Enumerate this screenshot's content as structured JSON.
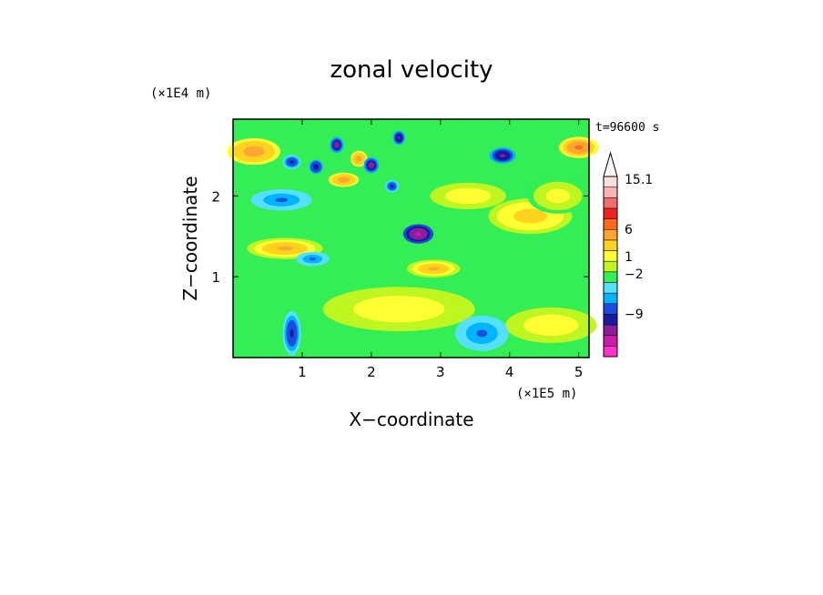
{
  "chart_data": {
    "type": "heatmap",
    "title": "zonal velocity",
    "xlabel": "X−coordinate",
    "ylabel": "Z−coordinate",
    "x_unit": "(×1E5 m)",
    "y_unit": "(×1E4 m)",
    "time_label": "t=96600 s",
    "xlim": [
      0,
      5.15
    ],
    "ylim": [
      0,
      2.95
    ],
    "x_ticks": [
      "1",
      "2",
      "3",
      "4",
      "5"
    ],
    "y_ticks": [
      "1",
      "2"
    ],
    "colorbar": {
      "labels": [
        "15.1",
        "6",
        "1",
        "−2",
        "−9"
      ],
      "levels": [
        {
          "value": -13,
          "color": "#ff33cc"
        },
        {
          "value": -10,
          "color": "#cc1aaa"
        },
        {
          "value": -7,
          "color": "#8a1f9c"
        },
        {
          "value": -4,
          "color": "#1a1aa0"
        },
        {
          "value": -2.5,
          "color": "#1e4be0"
        },
        {
          "value": -1.5,
          "color": "#00b4ff"
        },
        {
          "value": -0.5,
          "color": "#55e0ff"
        },
        {
          "value": 0,
          "color": "#33ee55"
        },
        {
          "value": 0.5,
          "color": "#bff520"
        },
        {
          "value": 1,
          "color": "#ffff33"
        },
        {
          "value": 2,
          "color": "#ffd21e"
        },
        {
          "value": 3.5,
          "color": "#ffa533"
        },
        {
          "value": 5,
          "color": "#ff6a1a"
        },
        {
          "value": 7.5,
          "color": "#ee2222"
        },
        {
          "value": 10,
          "color": "#f06e6e"
        },
        {
          "value": 12.5,
          "color": "#f8b4b4"
        },
        {
          "value": 15.1,
          "color": "#fce0dc"
        }
      ]
    },
    "field_features": [
      {
        "x": 1.5,
        "z": 2.63,
        "u": -7,
        "sx": 0.09,
        "sz": 0.09
      },
      {
        "x": 1.82,
        "z": 2.46,
        "u": 4,
        "sx": 0.11,
        "sz": 0.09
      },
      {
        "x": 2.0,
        "z": 2.38,
        "u": -7,
        "sx": 0.1,
        "sz": 0.09
      },
      {
        "x": 2.4,
        "z": 2.72,
        "u": -6,
        "sx": 0.08,
        "sz": 0.08
      },
      {
        "x": 0.85,
        "z": 2.42,
        "u": -4,
        "sx": 0.12,
        "sz": 0.08
      },
      {
        "x": 1.2,
        "z": 2.36,
        "u": -5,
        "sx": 0.09,
        "sz": 0.08
      },
      {
        "x": 1.6,
        "z": 2.2,
        "u": 4,
        "sx": 0.2,
        "sz": 0.08
      },
      {
        "x": 2.3,
        "z": 2.12,
        "u": -4,
        "sx": 0.09,
        "sz": 0.07
      },
      {
        "x": 2.68,
        "z": 1.53,
        "u": -10,
        "sx": 0.2,
        "sz": 0.11
      },
      {
        "x": 3.9,
        "z": 2.5,
        "u": -6,
        "sx": 0.17,
        "sz": 0.09
      },
      {
        "x": 5.0,
        "z": 2.6,
        "u": 5,
        "sx": 0.26,
        "sz": 0.12
      },
      {
        "x": 0.3,
        "z": 2.55,
        "u": 4,
        "sx": 0.35,
        "sz": 0.15
      },
      {
        "x": 0.7,
        "z": 1.95,
        "u": -2,
        "sx": 0.4,
        "sz": 0.12
      },
      {
        "x": 0.75,
        "z": 1.35,
        "u": 3,
        "sx": 0.5,
        "sz": 0.12
      },
      {
        "x": 2.9,
        "z": 1.1,
        "u": 3,
        "sx": 0.35,
        "sz": 0.1
      },
      {
        "x": 1.15,
        "z": 1.22,
        "u": -2,
        "sx": 0.22,
        "sz": 0.08
      },
      {
        "x": 4.3,
        "z": 1.75,
        "u": 2,
        "sx": 0.55,
        "sz": 0.2
      },
      {
        "x": 3.6,
        "z": 0.3,
        "u": -2,
        "sx": 0.35,
        "sz": 0.2
      },
      {
        "x": 0.85,
        "z": 0.3,
        "u": -4,
        "sx": 0.12,
        "sz": 0.25
      },
      {
        "x": 2.4,
        "z": 0.6,
        "u": 1.5,
        "sx": 1.0,
        "sz": 0.25
      },
      {
        "x": 4.6,
        "z": 0.4,
        "u": 1.5,
        "sx": 0.6,
        "sz": 0.2
      },
      {
        "x": 3.4,
        "z": 2.0,
        "u": 1.5,
        "sx": 0.5,
        "sz": 0.15
      },
      {
        "x": 4.7,
        "z": 2.0,
        "u": 1.2,
        "sx": 0.4,
        "sz": 0.2
      }
    ]
  }
}
